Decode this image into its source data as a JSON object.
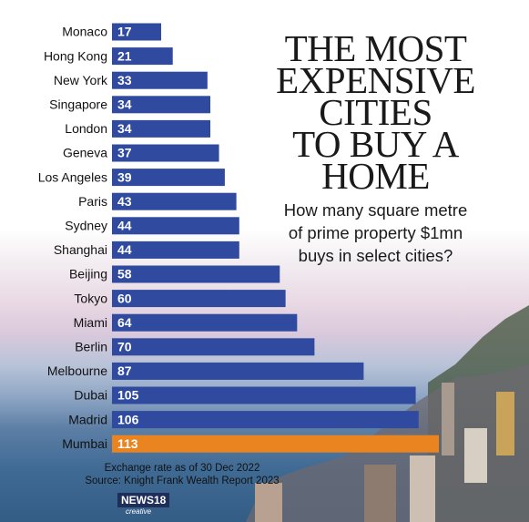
{
  "chart_data": {
    "type": "bar",
    "orientation": "horizontal",
    "title": "THE MOST\nEXPENSIVE\nCITIES\nTO BUY A\nHOME",
    "subtitle": "How many square metre\nof prime property $1mn\nbuys in select cities?",
    "categories": [
      "Monaco",
      "Hong Kong",
      "New York",
      "Singapore",
      "London",
      "Geneva",
      "Los Angeles",
      "Paris",
      "Sydney",
      "Shanghai",
      "Beijing",
      "Tokyo",
      "Miami",
      "Berlin",
      "Melbourne",
      "Dubai",
      "Madrid",
      "Mumbai"
    ],
    "values": [
      17,
      21,
      33,
      34,
      34,
      37,
      39,
      43,
      44,
      44,
      58,
      60,
      64,
      70,
      87,
      105,
      106,
      113
    ],
    "colors": [
      "#2f4a9e",
      "#2f4a9e",
      "#2f4a9e",
      "#2f4a9e",
      "#2f4a9e",
      "#2f4a9e",
      "#2f4a9e",
      "#2f4a9e",
      "#2f4a9e",
      "#2f4a9e",
      "#2f4a9e",
      "#2f4a9e",
      "#2f4a9e",
      "#2f4a9e",
      "#2f4a9e",
      "#2f4a9e",
      "#2f4a9e",
      "#ea8420"
    ],
    "notes": [
      "Exchange rate as of 30 Dec 2022",
      "Source: Knight Frank Wealth Report 2023"
    ],
    "logo": [
      "NEWS18",
      "creative"
    ]
  }
}
